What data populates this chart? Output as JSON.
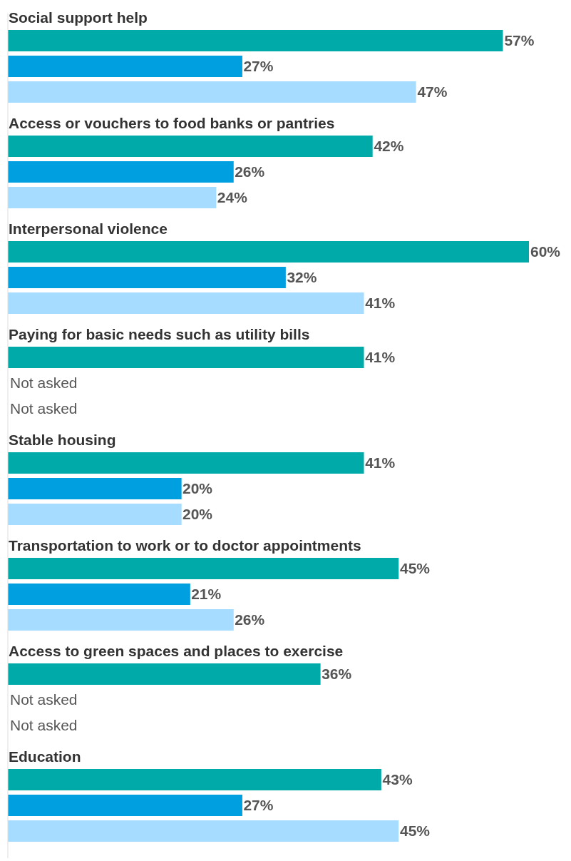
{
  "chart_data": {
    "type": "bar",
    "orientation": "horizontal",
    "categories": [
      "Social support help",
      "Access or vouchers to food banks or pantries",
      "Interpersonal violence",
      "Paying for basic needs such as utility bills",
      "Stable housing",
      "Transportation to work or to doctor appointments",
      "Access to green spaces and places to exercise",
      "Education"
    ],
    "series": [
      {
        "color": "#00aaa8",
        "values": [
          57,
          42,
          60,
          41,
          41,
          45,
          36,
          43
        ],
        "value_labels": [
          "57%",
          "42%",
          "60%",
          "41%",
          "41%",
          "45%",
          "36%",
          "43%"
        ]
      },
      {
        "color": "#009fe0",
        "values": [
          27,
          26,
          32,
          null,
          20,
          21,
          null,
          27
        ],
        "value_labels": [
          "27%",
          "26%",
          "32%",
          "Not asked",
          "20%",
          "21%",
          "Not asked",
          "27%"
        ]
      },
      {
        "color": "#a6dcff",
        "values": [
          47,
          24,
          41,
          null,
          20,
          26,
          null,
          45
        ],
        "value_labels": [
          "47%",
          "24%",
          "41%",
          "Not asked",
          "20%",
          "26%",
          "Not asked",
          "45%"
        ]
      }
    ]
  }
}
